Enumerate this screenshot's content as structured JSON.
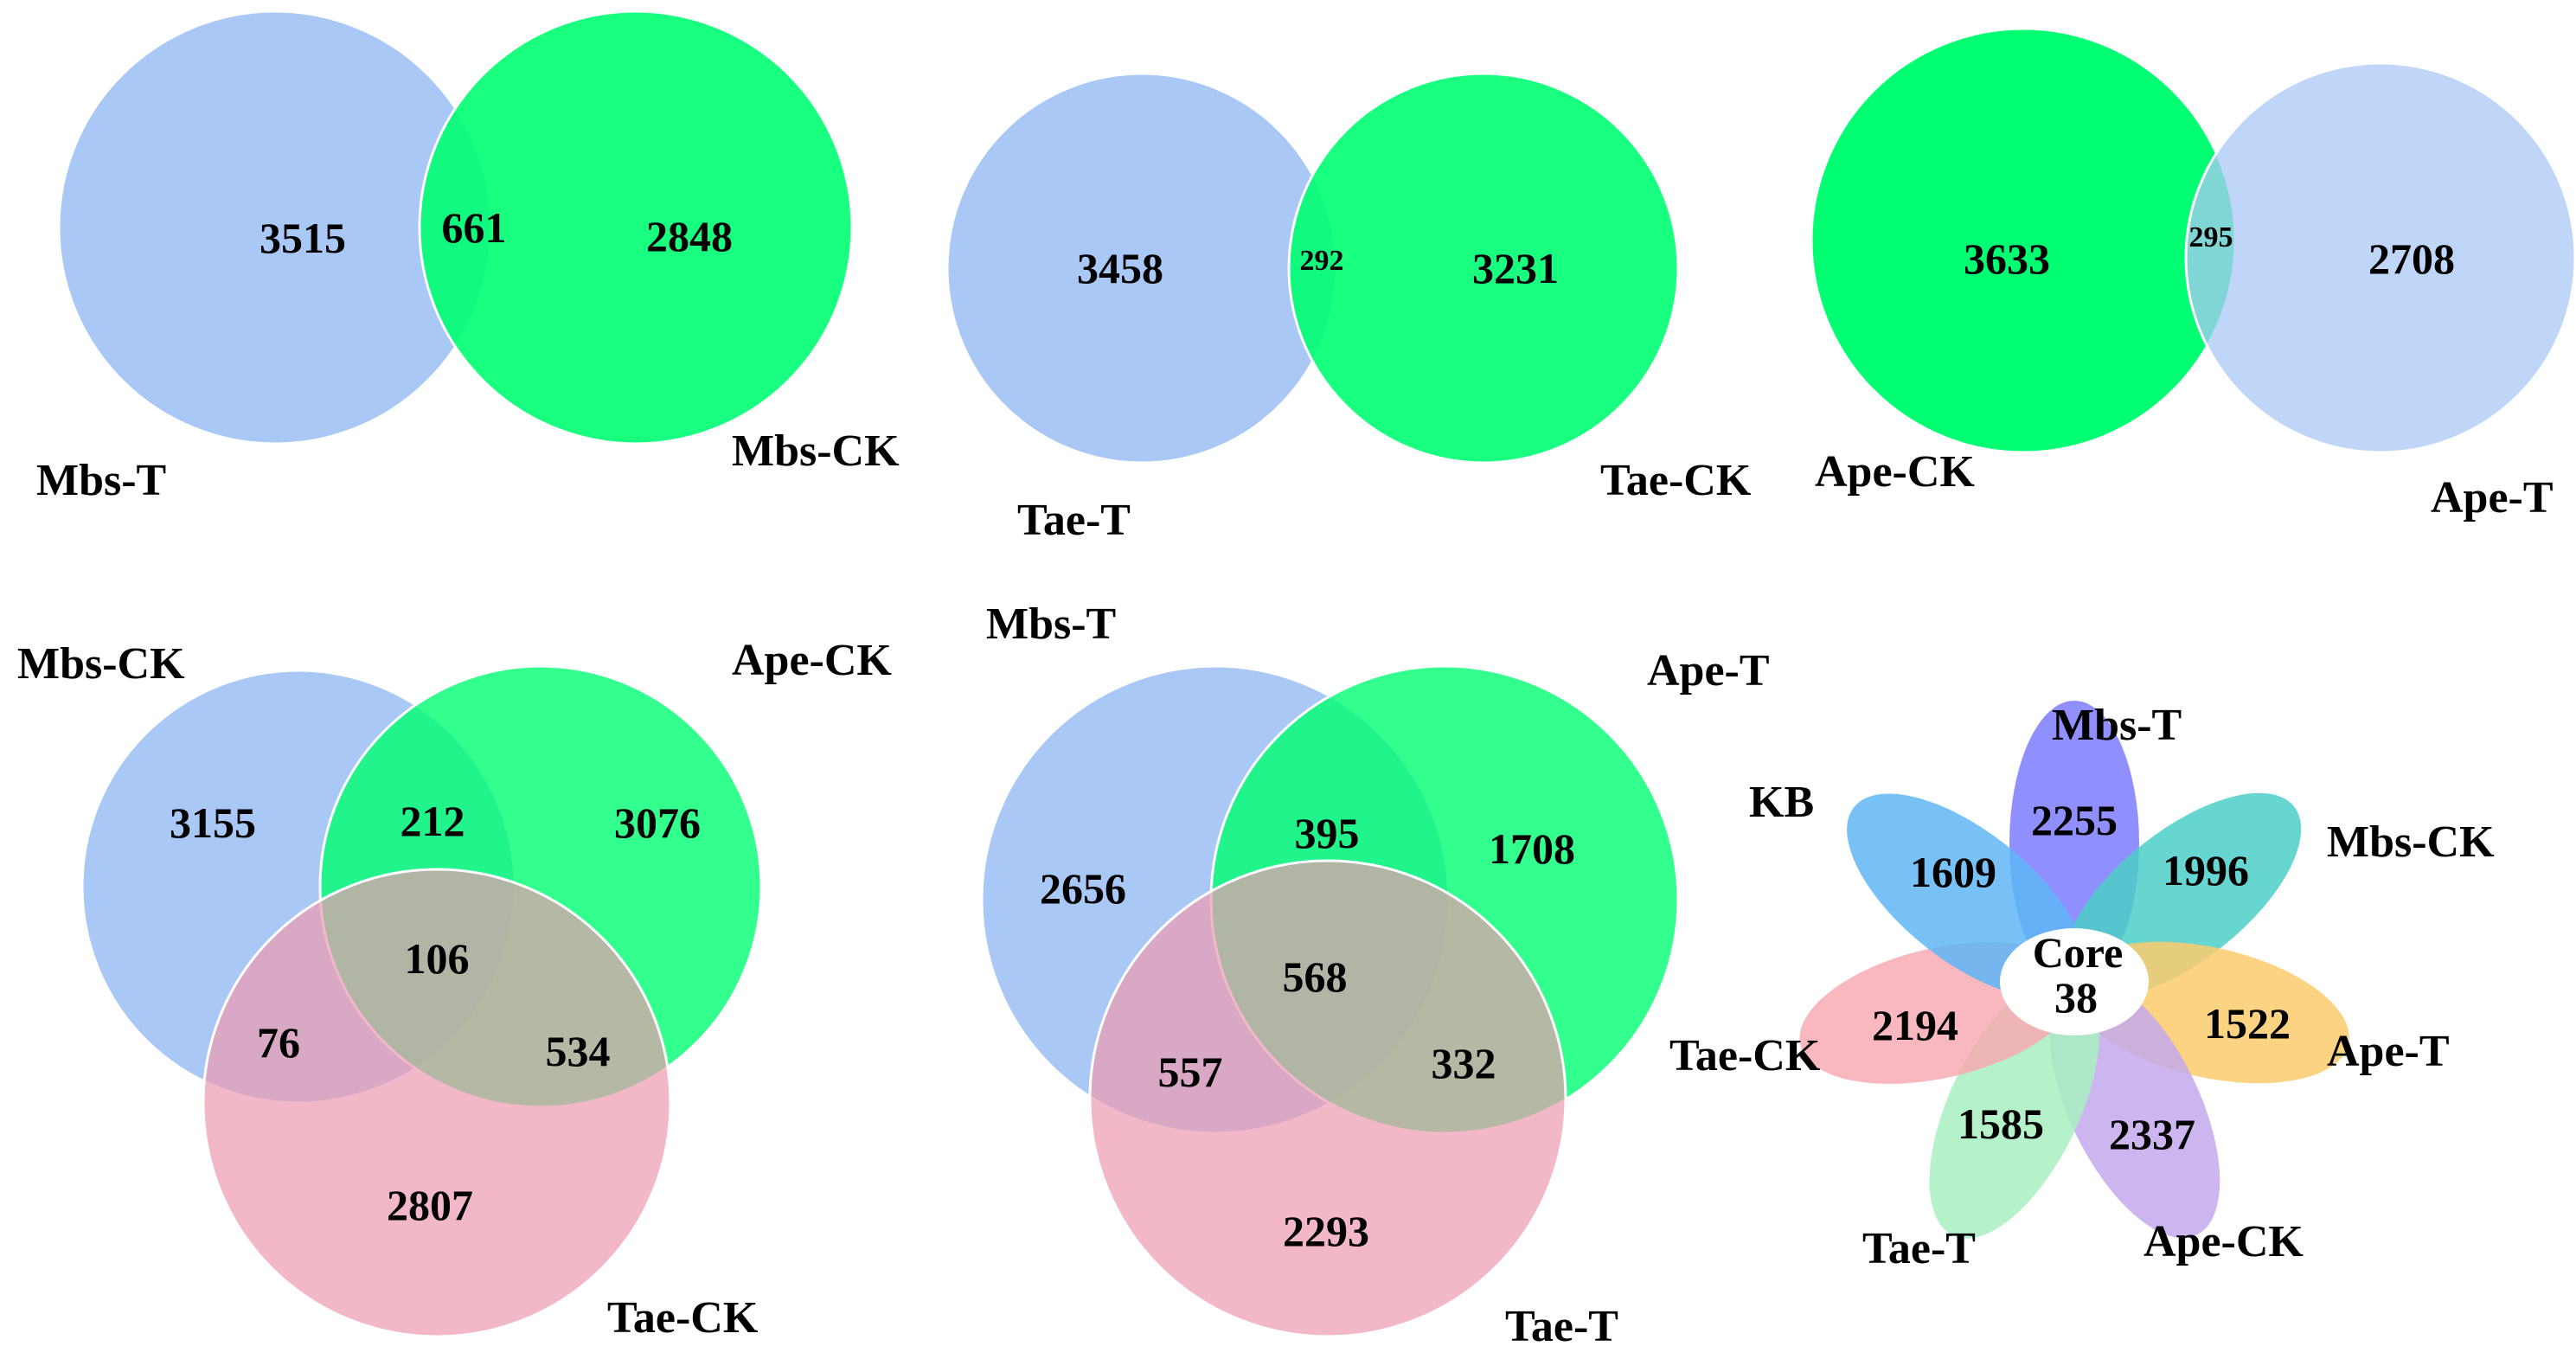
{
  "colors": {
    "blue": "#a9c8f5",
    "green": "#00ff72",
    "pink": "#ec9aaf",
    "overlap_two": "#18d470",
    "overlap_teal": "#1ec7b0",
    "mbs_t_petal": "#7b7bff",
    "mbs_ck_petal": "#4ecfc8",
    "ape_t_petal": "#fccb6c",
    "ape_ck_petal": "#c4a8ec",
    "tae_t_petal": "#a8f0c0",
    "tae_ck_petal": "#f8aab4",
    "kb_petal": "#5fb6f6"
  },
  "venn_mbs": {
    "left_label": "Mbs-T",
    "right_label": "Mbs-CK",
    "left_only": "3515",
    "overlap": "661",
    "right_only": "2848"
  },
  "venn_tae": {
    "left_label": "Tae-T",
    "right_label": "Tae-CK",
    "left_only": "3458",
    "overlap": "292",
    "right_only": "3231"
  },
  "venn_ape": {
    "left_label": "Ape-CK",
    "right_label": "Ape-T",
    "left_only": "3633",
    "overlap": "295",
    "right_only": "2708"
  },
  "venn_ck": {
    "label_a": "Mbs-CK",
    "label_b": "Ape-CK",
    "label_c": "Tae-CK",
    "a_only": "3155",
    "b_only": "3076",
    "c_only": "2807",
    "ab": "212",
    "ac": "76",
    "bc": "534",
    "abc": "106"
  },
  "venn_t": {
    "label_a": "Mbs-T",
    "label_b": "Ape-T",
    "label_c": "Tae-T",
    "a_only": "2656",
    "b_only": "1708",
    "c_only": "2293",
    "ab": "395",
    "ac": "557",
    "bc": "332",
    "abc": "568"
  },
  "flower": {
    "core_label": "Core",
    "core_value": "38",
    "petals": {
      "mbs_t": {
        "label": "Mbs-T",
        "value": "2255"
      },
      "mbs_ck": {
        "label": "Mbs-CK",
        "value": "1996"
      },
      "ape_t": {
        "label": "Ape-T",
        "value": "1522"
      },
      "ape_ck": {
        "label": "Ape-CK",
        "value": "2337"
      },
      "tae_t": {
        "label": "Tae-T",
        "value": "1585"
      },
      "tae_ck": {
        "label": "Tae-CK",
        "value": "2194"
      },
      "kb": {
        "label": "KB",
        "value": "1609"
      }
    }
  }
}
